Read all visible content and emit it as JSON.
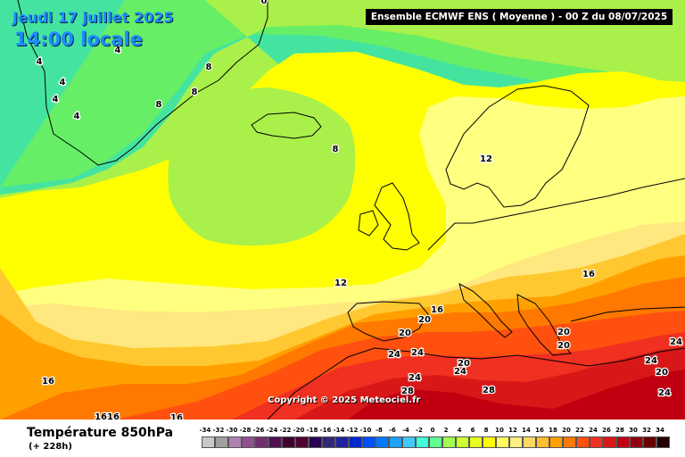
{
  "header": {
    "date": "Jeudi 17 juillet 2025",
    "local_time": "14:00 locale",
    "model_run": "Ensemble ECMWF ENS  ( Moyenne )  -  00 Z du 08/07/2025"
  },
  "map": {
    "copyright": "Copyright © 2025 Meteociel.fr",
    "contour_labels": [
      {
        "id": "lbl-0-top",
        "text": "0"
      },
      {
        "id": "lbl-4-a",
        "text": "4"
      },
      {
        "id": "lbl-4-b",
        "text": "4"
      },
      {
        "id": "lbl-4-c",
        "text": "4"
      },
      {
        "id": "lbl-4-d",
        "text": "4"
      },
      {
        "id": "lbl-4-e",
        "text": "4"
      },
      {
        "id": "lbl-8-a",
        "text": "8"
      },
      {
        "id": "lbl-8-b",
        "text": "8"
      },
      {
        "id": "lbl-8-c",
        "text": "8"
      },
      {
        "id": "lbl-8-d",
        "text": "8"
      },
      {
        "id": "lbl-12-a",
        "text": "12"
      },
      {
        "id": "lbl-12-b",
        "text": "12"
      },
      {
        "id": "lbl-16-a",
        "text": "16"
      },
      {
        "id": "lbl-16-b",
        "text": "16"
      },
      {
        "id": "lbl-16-c",
        "text": "16"
      },
      {
        "id": "lbl-16-d",
        "text": "1616"
      },
      {
        "id": "lbl-16-e",
        "text": "16"
      },
      {
        "id": "lbl-20-a",
        "text": "20"
      },
      {
        "id": "lbl-20-b",
        "text": "20"
      },
      {
        "id": "lbl-20-c",
        "text": "20"
      },
      {
        "id": "lbl-20-d",
        "text": "20"
      },
      {
        "id": "lbl-20-e",
        "text": "20"
      },
      {
        "id": "lbl-20-f",
        "text": "20"
      },
      {
        "id": "lbl-24-a",
        "text": "24"
      },
      {
        "id": "lbl-24-b",
        "text": "24"
      },
      {
        "id": "lbl-24-c",
        "text": "24"
      },
      {
        "id": "lbl-24-d",
        "text": "24"
      },
      {
        "id": "lbl-24-e",
        "text": "24"
      },
      {
        "id": "lbl-24-f",
        "text": "24"
      },
      {
        "id": "lbl-24-g",
        "text": "24"
      },
      {
        "id": "lbl-28-a",
        "text": "28"
      },
      {
        "id": "lbl-28-b",
        "text": "28"
      }
    ]
  },
  "footer": {
    "variable": "Température 850hPa",
    "lead_time": "(+ 228h)"
  },
  "legend": {
    "labels": [
      "-34",
      "-32",
      "-30",
      "-28",
      "-26",
      "-24",
      "-22",
      "-20",
      "-18",
      "-16",
      "-14",
      "-12",
      "-10",
      "-8",
      "-6",
      "-4",
      "-2",
      "0",
      "2",
      "4",
      "6",
      "8",
      "10",
      "12",
      "14",
      "16",
      "18",
      "20",
      "22",
      "24",
      "26",
      "28",
      "30",
      "32",
      "34"
    ],
    "colors": [
      "#c8c8c8",
      "#a0a0a0",
      "#b080b0",
      "#905090",
      "#703070",
      "#501050",
      "#400030",
      "#500030",
      "#280050",
      "#302878",
      "#2020a0",
      "#0028d0",
      "#0050ff",
      "#0078ff",
      "#20a0ff",
      "#40c8ff",
      "#40ffd8",
      "#60ff90",
      "#a0ff50",
      "#ccff30",
      "#e8ff20",
      "#ffff00",
      "#ffff60",
      "#ffee80",
      "#ffd860",
      "#ffbe30",
      "#ffa000",
      "#ff7800",
      "#ff5010",
      "#f03020",
      "#d81818",
      "#c00010",
      "#900010",
      "#680000",
      "#200000"
    ]
  },
  "colors": {
    "cold_zone": "#22ff88",
    "mild_zone": "#ffff00",
    "hot_zone": "#ff4010",
    "coastline": "#000000"
  }
}
